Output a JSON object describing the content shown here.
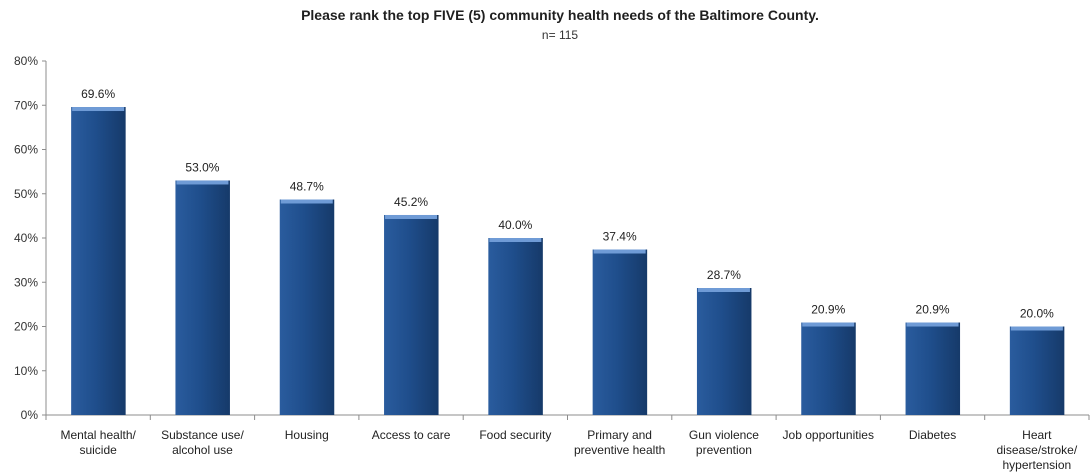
{
  "chart_data": {
    "type": "bar",
    "title": "Please rank the top FIVE (5) community health needs of the Baltimore County.",
    "subtitle": "n= 115",
    "xlabel": "",
    "ylabel": "",
    "ylim": [
      0,
      80
    ],
    "yticks": [
      "0%",
      "10%",
      "20%",
      "30%",
      "40%",
      "50%",
      "60%",
      "70%",
      "80%"
    ],
    "grid": false,
    "categories": [
      [
        "Mental health/",
        "suicide"
      ],
      [
        "Substance use/",
        "alcohol use"
      ],
      [
        "Housing"
      ],
      [
        "Access to care"
      ],
      [
        "Food security"
      ],
      [
        "Primary and",
        "preventive health"
      ],
      [
        "Gun violence",
        "prevention"
      ],
      [
        "Job opportunities"
      ],
      [
        "Diabetes"
      ],
      [
        "Heart",
        "disease/stroke/",
        "hypertension"
      ]
    ],
    "values": [
      69.6,
      53.0,
      48.7,
      45.2,
      40.0,
      37.4,
      28.7,
      20.9,
      20.9,
      20.0
    ],
    "value_labels": [
      "69.6%",
      "53.0%",
      "48.7%",
      "45.2%",
      "40.0%",
      "37.4%",
      "28.7%",
      "20.9%",
      "20.9%",
      "20.0%"
    ],
    "colors": {
      "bar": "#1f4e8c",
      "bar_dark": "#163a6a",
      "bar_top": "#6f9bd6",
      "axis": "#8c8c8c"
    }
  }
}
